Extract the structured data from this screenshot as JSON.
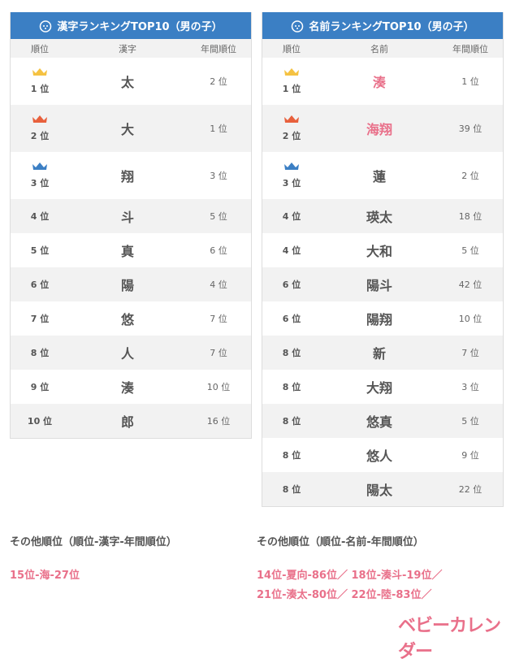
{
  "colors": {
    "header": "#3b7fc4",
    "gold": "#f5c242",
    "silver_red": "#e8603c",
    "bronze_blue": "#3b7fc4",
    "highlight": "#e9708a"
  },
  "kanji": {
    "title": "漢字ランキングTOP10（男の子）",
    "headers": [
      "順位",
      "漢字",
      "年間順位"
    ],
    "rows": [
      {
        "rank": "1 位",
        "value": "太",
        "annual": "2 位",
        "crown": "gold"
      },
      {
        "rank": "2 位",
        "value": "大",
        "annual": "1 位",
        "crown": "red"
      },
      {
        "rank": "3 位",
        "value": "翔",
        "annual": "3 位",
        "crown": "blue"
      },
      {
        "rank": "4 位",
        "value": "斗",
        "annual": "5 位"
      },
      {
        "rank": "5 位",
        "value": "真",
        "annual": "6 位"
      },
      {
        "rank": "6 位",
        "value": "陽",
        "annual": "4 位"
      },
      {
        "rank": "7 位",
        "value": "悠",
        "annual": "7 位"
      },
      {
        "rank": "8 位",
        "value": "人",
        "annual": "7 位"
      },
      {
        "rank": "9 位",
        "value": "湊",
        "annual": "10 位"
      },
      {
        "rank": "10 位",
        "value": "郎",
        "annual": "16 位"
      }
    ]
  },
  "names": {
    "title": "名前ランキングTOP10（男の子）",
    "headers": [
      "順位",
      "名前",
      "年間順位"
    ],
    "rows": [
      {
        "rank": "1 位",
        "value": "湊",
        "annual": "1 位",
        "crown": "gold",
        "highlight": true
      },
      {
        "rank": "2 位",
        "value": "海翔",
        "annual": "39 位",
        "crown": "red",
        "highlight": true
      },
      {
        "rank": "3 位",
        "value": "蓮",
        "annual": "2 位",
        "crown": "blue"
      },
      {
        "rank": "4 位",
        "value": "瑛太",
        "annual": "18 位"
      },
      {
        "rank": "4 位",
        "value": "大和",
        "annual": "5 位"
      },
      {
        "rank": "6 位",
        "value": "陽斗",
        "annual": "42 位"
      },
      {
        "rank": "6 位",
        "value": "陽翔",
        "annual": "10 位"
      },
      {
        "rank": "8 位",
        "value": "新",
        "annual": "7 位"
      },
      {
        "rank": "8 位",
        "value": "大翔",
        "annual": "3 位"
      },
      {
        "rank": "8 位",
        "value": "悠真",
        "annual": "5 位"
      },
      {
        "rank": "8 位",
        "value": "悠人",
        "annual": "9 位"
      },
      {
        "rank": "8 位",
        "value": "陽太",
        "annual": "22 位"
      }
    ]
  },
  "other_kanji": {
    "title": "その他順位（順位-漢字-年間順位）",
    "lines": [
      "15位-海-27位"
    ]
  },
  "other_names": {
    "title": "その他順位（順位-名前-年間順位）",
    "lines": [
      "14位-夏向-86位／ 18位-湊斗-19位／",
      "21位-湊太-80位／ 22位-陸-83位／"
    ]
  },
  "logo": "ベビーカレンダー"
}
